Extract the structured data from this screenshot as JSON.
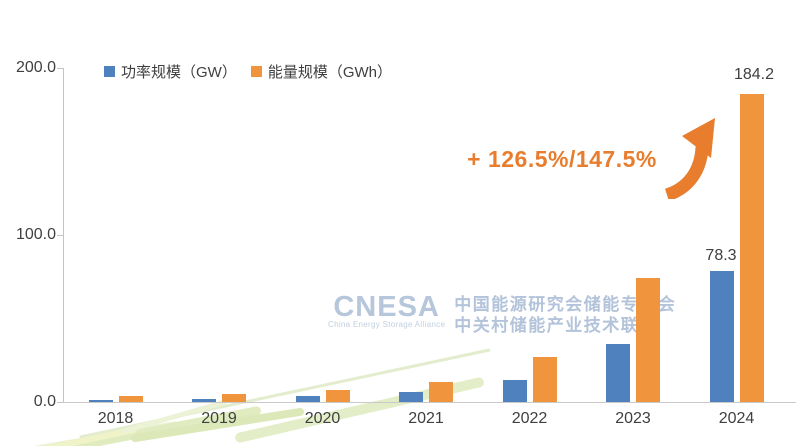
{
  "chart_data": {
    "type": "bar",
    "categories": [
      "2018",
      "2019",
      "2020",
      "2021",
      "2022",
      "2023",
      "2024"
    ],
    "series": [
      {
        "name": "功率规模（GW）",
        "color": "#4e81bd",
        "values": [
          1.0,
          1.9,
          3.5,
          5.7,
          13.1,
          34.5,
          78.3
        ]
      },
      {
        "name": "能量规模（GWh）",
        "color": "#f0943e",
        "values": [
          3.5,
          5.0,
          7.4,
          12.0,
          27.1,
          74.5,
          184.2
        ]
      }
    ],
    "ylim": [
      0,
      200
    ],
    "yticks": [
      {
        "value": 0,
        "label": "0.0"
      },
      {
        "value": 100,
        "label": "100.0"
      },
      {
        "value": 200,
        "label": "200.0"
      }
    ],
    "grid": false,
    "legend_position": "top",
    "data_labels": [
      {
        "category": "2024",
        "series": "功率规模（GW）",
        "text": "78.3"
      },
      {
        "category": "2024",
        "series": "能量规模（GWh）",
        "text": "184.2"
      }
    ],
    "annotation": {
      "text": "+ 126.5%/147.5%",
      "color": "#e87d2e"
    }
  },
  "legend": {
    "items": [
      {
        "label": "功率规模（GW）",
        "color": "#4e81bd"
      },
      {
        "label": "能量规模（GWh）",
        "color": "#f0943e"
      }
    ]
  },
  "watermark": {
    "logo": "CNESA",
    "tagline": "China Energy Storage Alliance",
    "line1": "中国能源研究会储能专委会",
    "line2": "中关村储能产业技术联盟",
    "color": "#b6c6db"
  },
  "colors": {
    "bar_blue": "#4e81bd",
    "bar_orange": "#f0943e",
    "annotation_orange": "#e87d2e",
    "axis_gray": "#c4c4c4",
    "text_gray": "#3f3f3f",
    "watermark_blue": "#b6c6db",
    "decor_green": "#dfeac2"
  }
}
